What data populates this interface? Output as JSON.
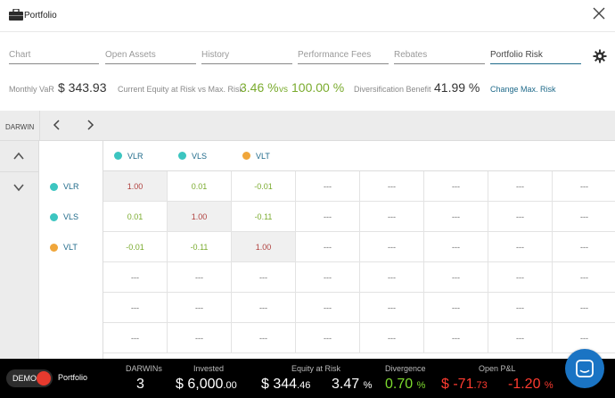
{
  "window": {
    "title": "Portfolio"
  },
  "tabs": [
    {
      "label": "Chart",
      "active": false
    },
    {
      "label": "Open Assets",
      "active": false
    },
    {
      "label": "History",
      "active": false
    },
    {
      "label": "Performance Fees",
      "active": false
    },
    {
      "label": "Rebates",
      "active": false
    },
    {
      "label": "Portfolio Risk",
      "active": true
    }
  ],
  "stats": {
    "monthly_var_label": "Monthly VaR",
    "monthly_var_value": "$ 343.93",
    "equity_label": "Current Equity at Risk vs Max. Risk",
    "equity_value": "3.46 %",
    "equity_vs": "vs",
    "equity_max": "100.00 %",
    "diversification_label": "Diversification Benefit",
    "diversification_value": "41.99 %",
    "change_link": "Change Max. Risk"
  },
  "grid": {
    "toolbar_label": "DARWIN",
    "columns": [
      {
        "name": "VLR",
        "color": "#3cc5c0"
      },
      {
        "name": "VLS",
        "color": "#3cc5c0"
      },
      {
        "name": "VLT",
        "color": "#f0a63a"
      }
    ],
    "rows": [
      {
        "name": "VLR",
        "color": "#3cc5c0",
        "values": [
          "1.00",
          "0.01",
          "-0.01",
          "---",
          "---",
          "---",
          "---",
          "---"
        ]
      },
      {
        "name": "VLS",
        "color": "#3cc5c0",
        "values": [
          "0.01",
          "1.00",
          "-0.11",
          "---",
          "---",
          "---",
          "---",
          "---"
        ]
      },
      {
        "name": "VLT",
        "color": "#f0a63a",
        "values": [
          "-0.01",
          "-0.11",
          "1.00",
          "---",
          "---",
          "---",
          "---",
          "---"
        ]
      },
      {
        "name": "",
        "color": "",
        "values": [
          "---",
          "---",
          "---",
          "---",
          "---",
          "---",
          "---",
          "---"
        ]
      },
      {
        "name": "",
        "color": "",
        "values": [
          "---",
          "---",
          "---",
          "---",
          "---",
          "---",
          "---",
          "---"
        ]
      },
      {
        "name": "",
        "color": "",
        "values": [
          "---",
          "---",
          "---",
          "---",
          "---",
          "---",
          "---",
          "---"
        ]
      }
    ]
  },
  "footer": {
    "demo_label": "DEMO",
    "portfolio_label": "Portfolio",
    "darwins_label": "DARWINs",
    "darwins_value": "3",
    "invested_label": "Invested",
    "invested_value": "$ 6,000",
    "invested_cents": ".00",
    "equity_label": "Equity at Risk",
    "equity_value": "$ 344",
    "equity_cents": ".46",
    "equity_pct": "3.47",
    "equity_pct_unit": "%",
    "divergence_label": "Divergence",
    "divergence_value": "0.70",
    "divergence_unit": "%",
    "pnl_label": "Open P&L",
    "pnl_value": "$ -71",
    "pnl_cents": ".73",
    "pnl_pct": "-1.20",
    "pnl_pct_unit": "%"
  },
  "colors": {
    "accent": "#1f6a8a",
    "green": "#7aab2e",
    "red": "#ff3b30",
    "chat": "#1a74c4"
  }
}
